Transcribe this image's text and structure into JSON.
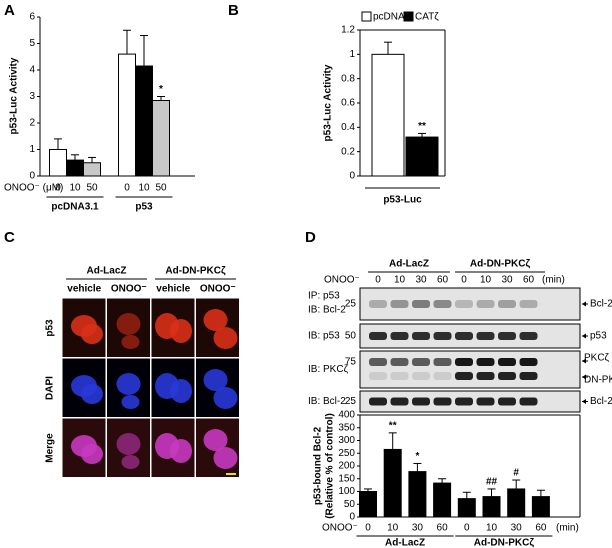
{
  "panel_labels": [
    "A",
    "B",
    "C",
    "D"
  ],
  "chart_data": [
    {
      "type": "bar",
      "ylabel": "p53-Luc Activity",
      "xlabel": "ONOO⁻ (μM)",
      "groups": [
        "pcDNA3.1",
        "p53"
      ],
      "categories": [
        "0",
        "10",
        "50",
        "0",
        "10",
        "50"
      ],
      "values": [
        1.0,
        0.6,
        0.5,
        4.6,
        4.15,
        2.85
      ],
      "errors": [
        0.4,
        0.2,
        0.2,
        0.9,
        1.15,
        0.15
      ],
      "colors": [
        "#ffffff",
        "#000000",
        "#c8c8c8",
        "#ffffff",
        "#000000",
        "#c8c8c8"
      ],
      "annotations": [
        null,
        null,
        null,
        null,
        null,
        "*"
      ],
      "ylim": [
        0,
        6
      ],
      "yticks": [
        0,
        1,
        2,
        3,
        4,
        5,
        6
      ]
    },
    {
      "type": "grouped_bar",
      "ylabel": "p53-Luc Activity",
      "categories": [
        "p53-Luc"
      ],
      "series": [
        {
          "name": "pcDNA",
          "color": "#ffffff",
          "values": [
            1.0
          ],
          "errors": [
            0.1
          ],
          "annotations": [
            null
          ]
        },
        {
          "name": "CATζ",
          "color": "#000000",
          "values": [
            0.32
          ],
          "errors": [
            0.03
          ],
          "annotations": [
            "**"
          ]
        }
      ],
      "ylim": [
        0,
        1.2
      ],
      "yticks": [
        0,
        0.2,
        0.4,
        0.6,
        0.8,
        1,
        1.2
      ]
    },
    {
      "type": "bar",
      "ylabel": [
        "p53-bound Bcl-2",
        "(Relative % of control)"
      ],
      "xlabel": "ONOO⁻",
      "xunit": "(min)",
      "groups": [
        "Ad-LacZ",
        "Ad-DN-PKCζ"
      ],
      "categories": [
        "0",
        "10",
        "30",
        "60",
        "0",
        "10",
        "30",
        "60"
      ],
      "values": [
        100,
        265,
        178,
        133,
        72,
        80,
        110,
        80
      ],
      "errors": [
        10,
        65,
        32,
        17,
        25,
        30,
        35,
        25
      ],
      "colors": [
        "#000000",
        "#000000",
        "#000000",
        "#000000",
        "#000000",
        "#000000",
        "#000000",
        "#000000"
      ],
      "annotations": [
        null,
        "**",
        "*",
        null,
        null,
        "##",
        "#",
        null
      ],
      "ylim": [
        0,
        400
      ],
      "yticks": [
        0,
        50,
        100,
        150,
        200,
        250,
        300,
        350,
        400
      ]
    }
  ],
  "panel_c": {
    "column_groups": [
      "Ad-LacZ",
      "Ad-DN-PKCζ"
    ],
    "columns": [
      "vehicle",
      "ONOO⁻",
      "vehicle",
      "ONOO⁻"
    ],
    "rows": [
      "p53",
      "DAPI",
      "Merge"
    ]
  },
  "blot": {
    "rows": [
      {
        "labels": [
          "IP: p53",
          "IB: Bcl-2"
        ],
        "marker": 25,
        "targets": [
          "Bcl-2"
        ]
      },
      {
        "labels": [
          "IB: p53"
        ],
        "marker": 50,
        "targets": [
          "p53"
        ]
      },
      {
        "labels": [
          "IB: PKCζ"
        ],
        "marker": 75,
        "targets": [
          "PKCζ",
          "DN-PKCζ"
        ]
      },
      {
        "labels": [
          "IB: Bcl-2"
        ],
        "marker": 25,
        "targets": [
          "Bcl-2"
        ]
      }
    ]
  }
}
